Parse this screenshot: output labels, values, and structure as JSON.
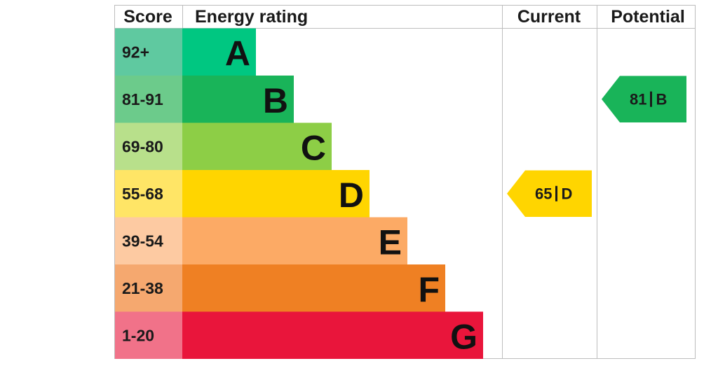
{
  "header": {
    "score": "Score",
    "energy_rating": "Energy rating",
    "current": "Current",
    "potential": "Potential"
  },
  "bands": [
    {
      "score": "92+",
      "rating": "A",
      "color": "#00c781",
      "score_color": "#5fc9a0"
    },
    {
      "score": "81-91",
      "rating": "B",
      "color": "#19b459",
      "score_color": "#6ccb8b"
    },
    {
      "score": "69-80",
      "rating": "C",
      "color": "#8dce46",
      "score_color": "#b8e08b"
    },
    {
      "score": "55-68",
      "rating": "D",
      "color": "#ffd500",
      "score_color": "#ffe566"
    },
    {
      "score": "39-54",
      "rating": "E",
      "color": "#fcaa65",
      "score_color": "#fdcaa2"
    },
    {
      "score": "21-38",
      "rating": "F",
      "color": "#ef8023",
      "score_color": "#f5a86f"
    },
    {
      "score": "1-20",
      "rating": "G",
      "color": "#e9153b",
      "score_color": "#f17289"
    }
  ],
  "current": {
    "value": 65,
    "rating": "D"
  },
  "potential": {
    "value": 81,
    "rating": "B"
  }
}
